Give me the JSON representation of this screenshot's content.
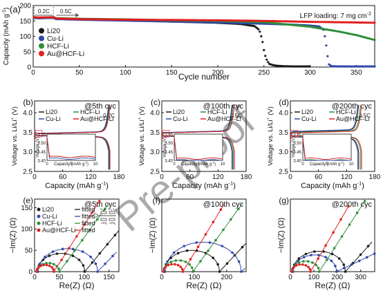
{
  "colors": {
    "Li20": "#1a1a1a",
    "Cu-Li": "#2f48a8",
    "HCF-Li": "#2f8f3a",
    "Au@HCF-Li": "#e02020",
    "box": "#e8687a"
  },
  "watermark": "Pre-proof",
  "panel_a": {
    "tag": "(a)",
    "annotation": "LFP loading: 7 mg cm",
    "annotation_sup": "-2",
    "rate_labels": [
      "0.2C",
      "0.5C"
    ],
    "ylabel": "Capacity (mAh g",
    "ylabel_sup": "-1",
    "ylabel_end": ")",
    "xlabel": "Cycle number",
    "xticks": [
      "0",
      "50",
      "100",
      "150",
      "200",
      "250",
      "300",
      "350"
    ],
    "yticks": [
      "0",
      "50",
      "100",
      "150",
      "200"
    ],
    "legend": [
      "Li20",
      "Cu-Li",
      "HCF-Li",
      "Au@HCF-Li"
    ]
  },
  "voltage_panels": [
    {
      "tag": "(b)",
      "title": "@5th cyc",
      "rate": "0.2C",
      "xticks": [
        "0",
        "60",
        "120",
        "180"
      ]
    },
    {
      "tag": "(c)",
      "title": "@100th cyc",
      "rate": "0.5C",
      "xticks": [
        "0",
        "60",
        "120",
        "180"
      ]
    },
    {
      "tag": "(d)",
      "title": "@200th cyc",
      "rate": "0.5C",
      "xticks": [
        "0",
        "60",
        "120",
        "180"
      ]
    }
  ],
  "voltage_common": {
    "ylabel": "Voltage vs. Li/Li",
    "ylabel_sup": "+",
    "ylabel_end": " (V)",
    "xlabel": "Capacity (mAh g",
    "xlabel_sup": "-1",
    "xlabel_end": ")",
    "yticks": [
      "2.5",
      "3.0",
      "3.5",
      "4.0"
    ],
    "legend": [
      "Li20",
      "HCF-Li",
      "Cu-Li",
      "Au@HCF-Li"
    ],
    "inset_ylabel": "Voltage (V)",
    "inset_xlabel": "Capacity (mAh g",
    "inset_xlabel_sup": "-1",
    "inset_xlabel_end": ")",
    "inset_yticks": [
      "3.40",
      "3.45",
      "3.50",
      "3.55"
    ],
    "inset_xticks": [
      "0",
      "5",
      "10"
    ]
  },
  "eis_panels": [
    {
      "tag": "(e)",
      "title": "@5th cyc",
      "xticks": [
        "0",
        "50",
        "100",
        "150"
      ],
      "yticks": [
        "0",
        "50",
        "100",
        "150"
      ]
    },
    {
      "tag": "(f)",
      "title": "@100th cyc",
      "xticks": [
        "0",
        "100",
        "200"
      ],
      "yticks": []
    },
    {
      "tag": "(g)",
      "title": "@200th cyc",
      "xticks": [
        "0",
        "100",
        "200",
        "300"
      ],
      "yticks": []
    }
  ],
  "eis_common": {
    "ylabel": "−Im(Z) (Ω)",
    "xlabel": "Re(Z) (Ω)",
    "legend": [
      "Li20",
      "Cu-Li",
      "HCF-Li",
      "Au@HCF-Li"
    ],
    "fitted_label": "fitted",
    "circuit_labels": [
      "R",
      "s",
      "R",
      "SEI",
      "R",
      "ct",
      "Z",
      "w",
      "CPE",
      "1",
      "CPE",
      "2"
    ]
  },
  "chart_data": [
    {
      "type": "scatter",
      "panel": "a",
      "xlabel": "Cycle number",
      "ylabel": "Capacity (mAh g-1)",
      "xlim": [
        0,
        370
      ],
      "ylim": [
        0,
        200
      ],
      "series": [
        {
          "name": "Li20",
          "x": [
            1,
            5,
            22,
            25,
            50,
            100,
            150,
            200,
            225,
            240,
            245,
            248,
            250,
            252,
            254,
            256,
            260,
            265,
            270,
            280,
            300
          ],
          "y": [
            160,
            159,
            160,
            157,
            155,
            152,
            148,
            144,
            140,
            133,
            120,
            90,
            55,
            30,
            18,
            10,
            6,
            4,
            3,
            2,
            2
          ]
        },
        {
          "name": "Cu-Li",
          "x": [
            1,
            5,
            22,
            25,
            50,
            100,
            150,
            200,
            250,
            280,
            300,
            310,
            315,
            318,
            320,
            323,
            330,
            350,
            370
          ],
          "y": [
            160,
            159,
            160,
            156,
            154,
            151,
            148,
            145,
            141,
            138,
            135,
            132,
            120,
            60,
            10,
            3,
            2,
            2,
            2
          ]
        },
        {
          "name": "HCF-Li",
          "x": [
            1,
            5,
            22,
            25,
            50,
            100,
            150,
            200,
            250,
            300,
            330,
            350,
            370
          ],
          "y": [
            162,
            161,
            162,
            159,
            157,
            155,
            152,
            150,
            146,
            131,
            116,
            104,
            88
          ]
        },
        {
          "name": "Au@HCF-Li",
          "x": [
            1,
            5,
            22,
            25,
            50,
            100,
            150,
            200,
            250,
            300,
            350,
            370
          ],
          "y": [
            162,
            161,
            162,
            158,
            156,
            154,
            153,
            152,
            150,
            147,
            145,
            144
          ]
        }
      ]
    },
    {
      "type": "line",
      "panel": "b",
      "xlabel": "Capacity (mAh g-1)",
      "ylabel": "Voltage vs. Li/Li+ (V)",
      "xlim": [
        0,
        180
      ],
      "ylim": [
        2.5,
        4.3
      ],
      "series": [
        {
          "name": "Li20",
          "capacity": 159,
          "plateau": 3.42,
          "charge_plateau": 3.46
        },
        {
          "name": "HCF-Li",
          "capacity": 160,
          "plateau": 3.42,
          "charge_plateau": 3.46
        },
        {
          "name": "Cu-Li",
          "capacity": 158,
          "plateau": 3.41,
          "charge_plateau": 3.47
        },
        {
          "name": "Au@HCF-Li",
          "capacity": 161,
          "plateau": 3.42,
          "charge_plateau": 3.46
        }
      ]
    },
    {
      "type": "line",
      "panel": "c",
      "xlabel": "Capacity (mAh g-1)",
      "ylabel": "Voltage vs. Li/Li+ (V)",
      "xlim": [
        0,
        180
      ],
      "ylim": [
        2.5,
        4.3
      ],
      "series": [
        {
          "name": "Li20",
          "capacity": 150,
          "plateau": 3.4,
          "charge_plateau": 3.49
        },
        {
          "name": "HCF-Li",
          "capacity": 153,
          "plateau": 3.41,
          "charge_plateau": 3.48
        },
        {
          "name": "Cu-Li",
          "capacity": 151,
          "plateau": 3.4,
          "charge_plateau": 3.49
        },
        {
          "name": "Au@HCF-Li",
          "capacity": 155,
          "plateau": 3.41,
          "charge_plateau": 3.48
        }
      ]
    },
    {
      "type": "line",
      "panel": "d",
      "xlabel": "Capacity (mAh g-1)",
      "ylabel": "Voltage vs. Li/Li+ (V)",
      "xlim": [
        0,
        180
      ],
      "ylim": [
        2.5,
        4.3
      ],
      "series": [
        {
          "name": "Li20",
          "capacity": 146,
          "plateau": 3.38,
          "charge_plateau": 3.51
        },
        {
          "name": "HCF-Li",
          "capacity": 150,
          "plateau": 3.4,
          "charge_plateau": 3.49
        },
        {
          "name": "Cu-Li",
          "capacity": 144,
          "plateau": 3.38,
          "charge_plateau": 3.52
        },
        {
          "name": "Au@HCF-Li",
          "capacity": 152,
          "plateau": 3.41,
          "charge_plateau": 3.48
        }
      ]
    },
    {
      "type": "scatter",
      "panel": "e",
      "xlabel": "Re(Z) (Ω)",
      "ylabel": "−Im(Z) (Ω)",
      "xlim": [
        0,
        170
      ],
      "ylim": [
        0,
        170
      ],
      "series": [
        {
          "name": "Li20",
          "r0": 6,
          "rct": 95,
          "tail": 1.4
        },
        {
          "name": "Cu-Li",
          "r0": 7,
          "rct": 120,
          "tail": 1.2
        },
        {
          "name": "HCF-Li",
          "r0": 5,
          "rct": 45,
          "tail": 1.6
        },
        {
          "name": "Au@HCF-Li",
          "r0": 4,
          "rct": 35,
          "tail": 1.8
        }
      ]
    },
    {
      "type": "scatter",
      "panel": "f",
      "xlabel": "Re(Z) (Ω)",
      "ylabel": "−Im(Z) (Ω)",
      "xlim": [
        0,
        260
      ],
      "ylim": [
        0,
        260
      ],
      "series": [
        {
          "name": "Li20",
          "r0": 8,
          "rct": 170,
          "tail": 1.25
        },
        {
          "name": "Cu-Li",
          "r0": 10,
          "rct": 235,
          "tail": 1.0
        },
        {
          "name": "HCF-Li",
          "r0": 6,
          "rct": 90,
          "tail": 1.6
        },
        {
          "name": "Au@HCF-Li",
          "r0": 5,
          "rct": 60,
          "tail": 1.9
        }
      ]
    },
    {
      "type": "scatter",
      "panel": "g",
      "xlabel": "Re(Z) (Ω)",
      "ylabel": "−Im(Z) (Ω)",
      "xlim": [
        0,
        360
      ],
      "ylim": [
        0,
        360
      ],
      "series": [
        {
          "name": "Li20",
          "r0": 10,
          "rct": 225,
          "tail": 1.3
        },
        {
          "name": "Cu-Li",
          "r0": 12,
          "rct": 185,
          "tail": 0.55
        },
        {
          "name": "HCF-Li",
          "r0": 8,
          "rct": 115,
          "tail": 1.8
        },
        {
          "name": "Au@HCF-Li",
          "r0": 6,
          "rct": 80,
          "tail": 2.0
        }
      ]
    }
  ]
}
